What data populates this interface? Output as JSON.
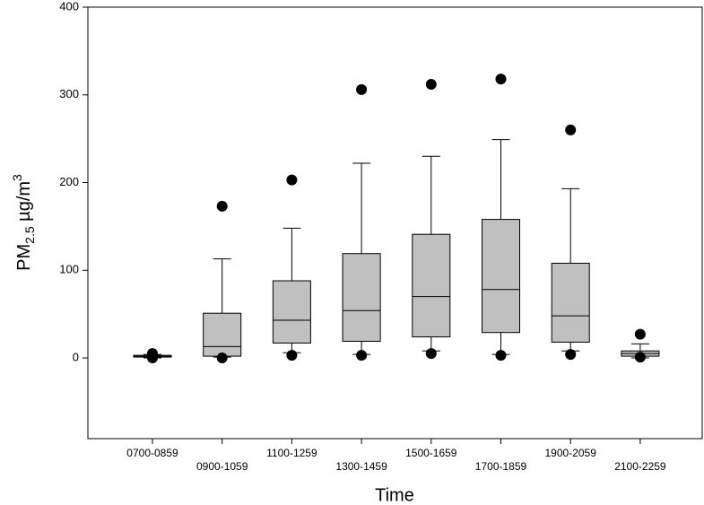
{
  "chart_data": {
    "type": "box",
    "xlabel": "Time",
    "ylabel": {
      "main": "PM",
      "sub": "2.5",
      "unit": " µg/m",
      "sup": "3"
    },
    "categories": [
      "0700-0859",
      "0900-1059",
      "1100-1259",
      "1300-1459",
      "1500-1659",
      "1700-1859",
      "1900-2059",
      "2100-2259"
    ],
    "color": "#c0c0c0",
    "ylim": [
      -92,
      400
    ],
    "yticks": [
      0,
      100,
      200,
      300,
      400
    ],
    "boxes": [
      {
        "min": 0,
        "q1": 1,
        "median": 2,
        "q3": 3,
        "max": 4,
        "outliers": [
          5,
          0
        ]
      },
      {
        "min": 1,
        "q1": 2,
        "median": 13,
        "q3": 51,
        "max": 113,
        "outliers": [
          173,
          0
        ]
      },
      {
        "min": 6,
        "q1": 17,
        "median": 43,
        "q3": 88,
        "max": 148,
        "outliers": [
          203,
          3
        ]
      },
      {
        "min": 4,
        "q1": 19,
        "median": 54,
        "q3": 119,
        "max": 222,
        "outliers": [
          306,
          3
        ]
      },
      {
        "min": 8,
        "q1": 24,
        "median": 70,
        "q3": 141,
        "max": 230,
        "outliers": [
          312,
          5
        ]
      },
      {
        "min": 4,
        "q1": 29,
        "median": 78,
        "q3": 158,
        "max": 249,
        "outliers": [
          318,
          3
        ]
      },
      {
        "min": 8,
        "q1": 18,
        "median": 48,
        "q3": 108,
        "max": 193,
        "outliers": [
          260,
          4
        ]
      },
      {
        "min": 0,
        "q1": 2,
        "median": 5,
        "q3": 8,
        "max": 16,
        "outliers": [
          27,
          1
        ]
      }
    ]
  }
}
